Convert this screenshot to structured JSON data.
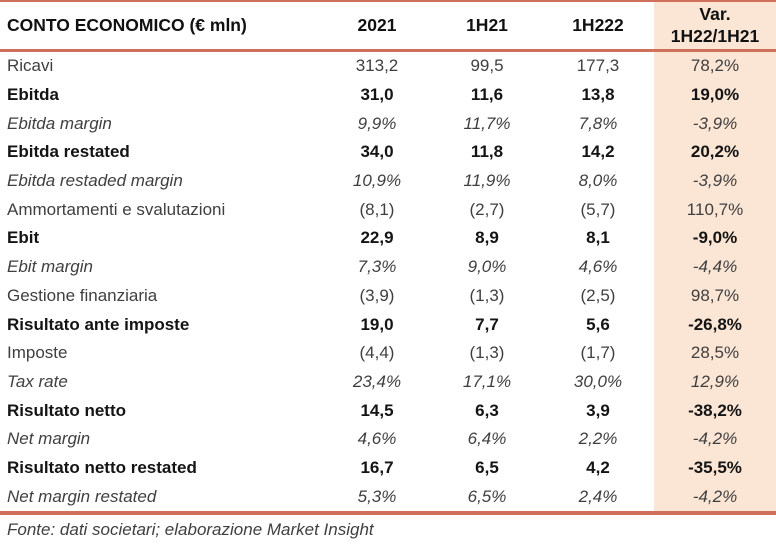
{
  "table": {
    "title": "CONTO ECONOMICO (€ mln)",
    "columns": [
      "2021",
      "1H21",
      "1H222"
    ],
    "var_column": {
      "line1": "Var.",
      "line2": "1H22/1H21"
    },
    "rows": [
      {
        "label": "Ricavi",
        "style": "normal",
        "values": [
          "313,2",
          "99,5",
          "177,3"
        ],
        "var": "78,2%"
      },
      {
        "label": "Ebitda",
        "style": "bold",
        "values": [
          "31,0",
          "11,6",
          "13,8"
        ],
        "var": "19,0%"
      },
      {
        "label": "Ebitda margin",
        "style": "italic",
        "values": [
          "9,9%",
          "11,7%",
          "7,8%"
        ],
        "var": "-3,9%"
      },
      {
        "label": "Ebitda restated",
        "style": "bold",
        "values": [
          "34,0",
          "11,8",
          "14,2"
        ],
        "var": "20,2%"
      },
      {
        "label": "Ebitda restaded margin",
        "style": "italic",
        "values": [
          "10,9%",
          "11,9%",
          "8,0%"
        ],
        "var": "-3,9%"
      },
      {
        "label": "Ammortamenti e svalutazioni",
        "style": "normal",
        "values": [
          "(8,1)",
          "(2,7)",
          "(5,7)"
        ],
        "var": "110,7%"
      },
      {
        "label": "Ebit",
        "style": "bold",
        "values": [
          "22,9",
          "8,9",
          "8,1"
        ],
        "var": "-9,0%"
      },
      {
        "label": "Ebit margin",
        "style": "italic",
        "values": [
          "7,3%",
          "9,0%",
          "4,6%"
        ],
        "var": "-4,4%"
      },
      {
        "label": "Gestione finanziaria",
        "style": "normal",
        "values": [
          "(3,9)",
          "(1,3)",
          "(2,5)"
        ],
        "var": "98,7%"
      },
      {
        "label": "Risultato ante imposte",
        "style": "bold",
        "values": [
          "19,0",
          "7,7",
          "5,6"
        ],
        "var": "-26,8%"
      },
      {
        "label": "Imposte",
        "style": "normal",
        "values": [
          "(4,4)",
          "(1,3)",
          "(1,7)"
        ],
        "var": "28,5%"
      },
      {
        "label": "Tax rate",
        "style": "italic",
        "values": [
          "23,4%",
          "17,1%",
          "30,0%"
        ],
        "var": "12,9%"
      },
      {
        "label": "Risultato netto",
        "style": "bold",
        "values": [
          "14,5",
          "6,3",
          "3,9"
        ],
        "var": "-38,2%"
      },
      {
        "label": "Net margin",
        "style": "italic",
        "values": [
          "4,6%",
          "6,4%",
          "2,2%"
        ],
        "var": "-4,2%"
      },
      {
        "label": "Risultato netto restated",
        "style": "bold",
        "values": [
          "16,7",
          "6,5",
          "4,2"
        ],
        "var": "-35,5%"
      },
      {
        "label": "Net margin restated",
        "style": "italic",
        "values": [
          "5,3%",
          "6,5%",
          "2,4%"
        ],
        "var": "-4,2%"
      }
    ],
    "footer": "Fonte: dati societari; elaborazione Market Insight",
    "colors": {
      "accent_border": "#d0705c",
      "var_column_bg": "#fbe5d4",
      "text_normal": "#3f3f3f",
      "text_bold": "#141414"
    }
  }
}
